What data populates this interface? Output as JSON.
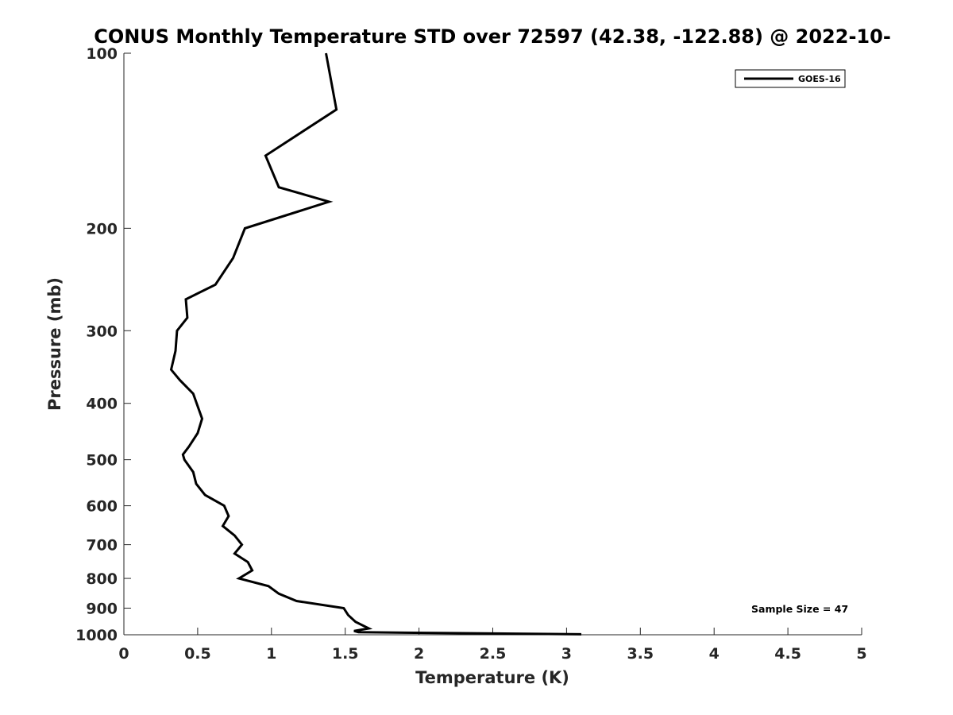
{
  "chart_data": {
    "type": "line",
    "title": "CONUS Monthly Temperature STD over 72597 (42.38, -122.88) @ 2022-10-",
    "xlabel": "Temperature (K)",
    "ylabel": "Pressure (mb)",
    "xlim": [
      0,
      5
    ],
    "ylim": [
      100,
      1000
    ],
    "y_scale": "log",
    "y_reversed": true,
    "grid": false,
    "legend_position": "top-right",
    "x_ticks": [
      "0",
      "0.5",
      "1",
      "1.5",
      "2",
      "2.5",
      "3",
      "3.5",
      "4",
      "4.5",
      "5"
    ],
    "y_ticks": [
      "100",
      "200",
      "300",
      "400",
      "500",
      "600",
      "700",
      "800",
      "900",
      "1000"
    ],
    "series": [
      {
        "name": "GOES-16",
        "color": "#000000",
        "points": [
          [
            1.37,
            100
          ],
          [
            1.44,
            125
          ],
          [
            0.96,
            150
          ],
          [
            1.05,
            170
          ],
          [
            1.39,
            180
          ],
          [
            0.82,
            200
          ],
          [
            0.74,
            225
          ],
          [
            0.62,
            250
          ],
          [
            0.42,
            265
          ],
          [
            0.43,
            285
          ],
          [
            0.36,
            300
          ],
          [
            0.35,
            325
          ],
          [
            0.32,
            350
          ],
          [
            0.38,
            365
          ],
          [
            0.47,
            385
          ],
          [
            0.53,
            425
          ],
          [
            0.5,
            450
          ],
          [
            0.44,
            475
          ],
          [
            0.4,
            490
          ],
          [
            0.41,
            500
          ],
          [
            0.47,
            525
          ],
          [
            0.49,
            550
          ],
          [
            0.55,
            575
          ],
          [
            0.68,
            600
          ],
          [
            0.71,
            625
          ],
          [
            0.67,
            650
          ],
          [
            0.75,
            675
          ],
          [
            0.8,
            700
          ],
          [
            0.75,
            725
          ],
          [
            0.84,
            750
          ],
          [
            0.87,
            775
          ],
          [
            0.78,
            800
          ],
          [
            0.98,
            825
          ],
          [
            1.05,
            850
          ],
          [
            1.17,
            875
          ],
          [
            1.49,
            900
          ],
          [
            1.52,
            925
          ],
          [
            1.57,
            950
          ],
          [
            1.66,
            975
          ],
          [
            1.56,
            985
          ],
          [
            1.59,
            990
          ],
          [
            3.1,
            998
          ]
        ]
      }
    ],
    "annotations": [
      "Sample Size = 47"
    ]
  }
}
